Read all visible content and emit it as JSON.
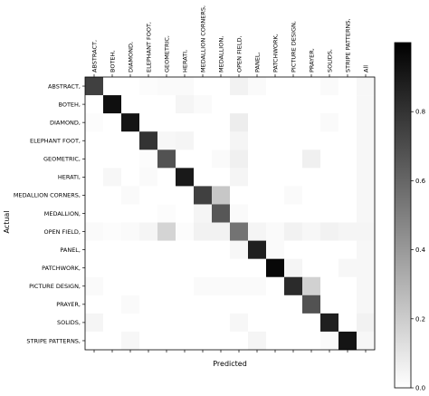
{
  "chart_data": {
    "type": "heatmap",
    "xlabel": "Predicted",
    "ylabel": "Actual",
    "x_categories": [
      "ABSTRACT,",
      "BOTEH,",
      "DIAMOND,",
      "ELEPHANT FOOT,",
      "GEOMETRIC,",
      "HERATI,",
      "MEDALLION CORNERS,",
      "MEDALLION,",
      "OPEN FIELD,",
      "PANEL,",
      "PATCHWORK,",
      "PICTURE DESIGN,",
      "PRAYER,",
      "SOLIDS,",
      "STRIPE PATTERNS,",
      "All"
    ],
    "y_categories": [
      "ABSTRACT,",
      "BOTEH,",
      "DIAMOND,",
      "ELEPHANT FOOT,",
      "GEOMETRIC,",
      "HERATI,",
      "MEDALLION CORNERS,",
      "MEDALLION,",
      "OPEN FIELD,",
      "PANEL,",
      "PATCHWORK,",
      "PICTURE DESIGN,",
      "PRAYER,",
      "SOLIDS,",
      "STRIPE PATTERNS,"
    ],
    "values": [
      [
        0.75,
        0,
        0,
        0.01,
        0.02,
        0.02,
        0,
        0,
        0.05,
        0.02,
        0,
        0,
        0,
        0.02,
        0,
        0.03
      ],
      [
        0,
        0.94,
        0,
        0,
        0,
        0.04,
        0.02,
        0,
        0,
        0,
        0,
        0,
        0,
        0,
        0,
        0.03
      ],
      [
        0.01,
        0,
        0.92,
        0,
        0,
        0,
        0,
        0,
        0.07,
        0,
        0,
        0,
        0,
        0.02,
        0,
        0.03
      ],
      [
        0,
        0,
        0,
        0.8,
        0.03,
        0.04,
        0,
        0,
        0.04,
        0,
        0,
        0,
        0,
        0,
        0,
        0.03
      ],
      [
        0,
        0,
        0,
        0.01,
        0.68,
        0,
        0,
        0.02,
        0.06,
        0,
        0,
        0,
        0.06,
        0,
        0,
        0.03
      ],
      [
        0,
        0.03,
        0,
        0.02,
        0,
        0.9,
        0,
        0,
        0.04,
        0,
        0,
        0,
        0,
        0,
        0,
        0.03
      ],
      [
        0,
        0,
        0.02,
        0,
        0,
        0,
        0.75,
        0.22,
        0,
        0,
        0,
        0.02,
        0,
        0,
        0,
        0.03
      ],
      [
        0,
        0,
        0,
        0,
        0.01,
        0,
        0.04,
        0.66,
        0.02,
        0,
        0,
        0,
        0,
        0,
        0,
        0.03
      ],
      [
        0.02,
        0.01,
        0.02,
        0.04,
        0.17,
        0.01,
        0.05,
        0.05,
        0.55,
        0.04,
        0.02,
        0.05,
        0.03,
        0.05,
        0.04,
        0.04
      ],
      [
        0,
        0,
        0,
        0,
        0,
        0,
        0,
        0,
        0.03,
        0.88,
        0.02,
        0,
        0,
        0,
        0,
        0.03
      ],
      [
        0,
        0,
        0,
        0,
        0,
        0,
        0,
        0,
        0,
        0,
        0.97,
        0.04,
        0,
        0,
        0.03,
        0.03
      ],
      [
        0.02,
        0,
        0,
        0,
        0,
        0,
        0.02,
        0.02,
        0.02,
        0.02,
        0,
        0.83,
        0.18,
        0,
        0,
        0.03
      ],
      [
        0,
        0,
        0.02,
        0,
        0,
        0,
        0,
        0,
        0,
        0,
        0,
        0,
        0.68,
        0,
        0,
        0.03
      ],
      [
        0.04,
        0,
        0,
        0,
        0,
        0,
        0,
        0,
        0.03,
        0,
        0,
        0,
        0,
        0.88,
        0,
        0.05
      ],
      [
        0,
        0,
        0.03,
        0,
        0,
        0,
        0,
        0,
        0,
        0.04,
        0,
        0,
        0,
        0.02,
        0.92,
        0.03
      ]
    ],
    "colorbar": {
      "ticks": [
        0.0,
        0.2,
        0.4,
        0.6,
        0.8
      ],
      "tick_labels": [
        "0.0",
        "0.2",
        "0.4",
        "0.6",
        "0.8"
      ],
      "range": [
        0,
        1
      ],
      "color_low": "#ffffff",
      "color_high": "#000000"
    },
    "grid": false,
    "legend": "colorbar-right"
  }
}
